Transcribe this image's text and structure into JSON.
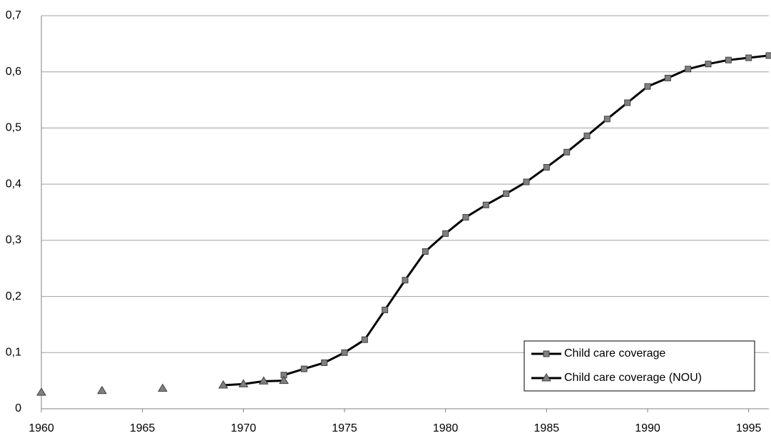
{
  "chart_data": {
    "type": "line",
    "xlim": [
      1960,
      1996
    ],
    "xticks": [
      1960,
      1965,
      1970,
      1975,
      1980,
      1985,
      1990,
      1995
    ],
    "ylim": [
      0,
      0.7
    ],
    "yticks": [
      0,
      {
        "value": 0.1,
        "label": "0,1"
      },
      {
        "value": 0.2,
        "label": "0,2"
      },
      {
        "value": 0.3,
        "label": "0,3"
      },
      {
        "value": 0.4,
        "label": "0,4"
      },
      {
        "value": 0.5,
        "label": "0,5"
      },
      {
        "value": 0.6,
        "label": "0,6"
      },
      {
        "value": 0.7,
        "label": "0,7"
      }
    ],
    "grid": true,
    "legend": "bottom-right",
    "series": [
      {
        "name": "Child care coverage",
        "color": "#808080",
        "marker": "square",
        "x": [
          1972,
          1973,
          1974,
          1975,
          1976,
          1977,
          1978,
          1979,
          1980,
          1981,
          1982,
          1983,
          1984,
          1985,
          1986,
          1987,
          1988,
          1989,
          1990,
          1991,
          1992,
          1993,
          1994,
          1995,
          1996
        ],
        "values": [
          0.06,
          0.071,
          0.082,
          0.1,
          0.123,
          0.176,
          0.229,
          0.28,
          0.312,
          0.341,
          0.363,
          0.383,
          0.404,
          0.43,
          0.457,
          0.486,
          0.516,
          0.545,
          0.574,
          0.589,
          0.605,
          0.614,
          0.621,
          0.625,
          0.629
        ]
      },
      {
        "name": "Child care coverage (NOU)",
        "color": "#808080",
        "marker": "triangle",
        "x": [
          1960,
          1961,
          1962,
          1963,
          1964,
          1965,
          1966,
          1967,
          1968,
          1969,
          1970,
          1971,
          1972
        ],
        "values": [
          0.029,
          null,
          null,
          0.032,
          null,
          null,
          0.036,
          null,
          null,
          0.042,
          0.044,
          0.049,
          0.05
        ]
      }
    ]
  }
}
